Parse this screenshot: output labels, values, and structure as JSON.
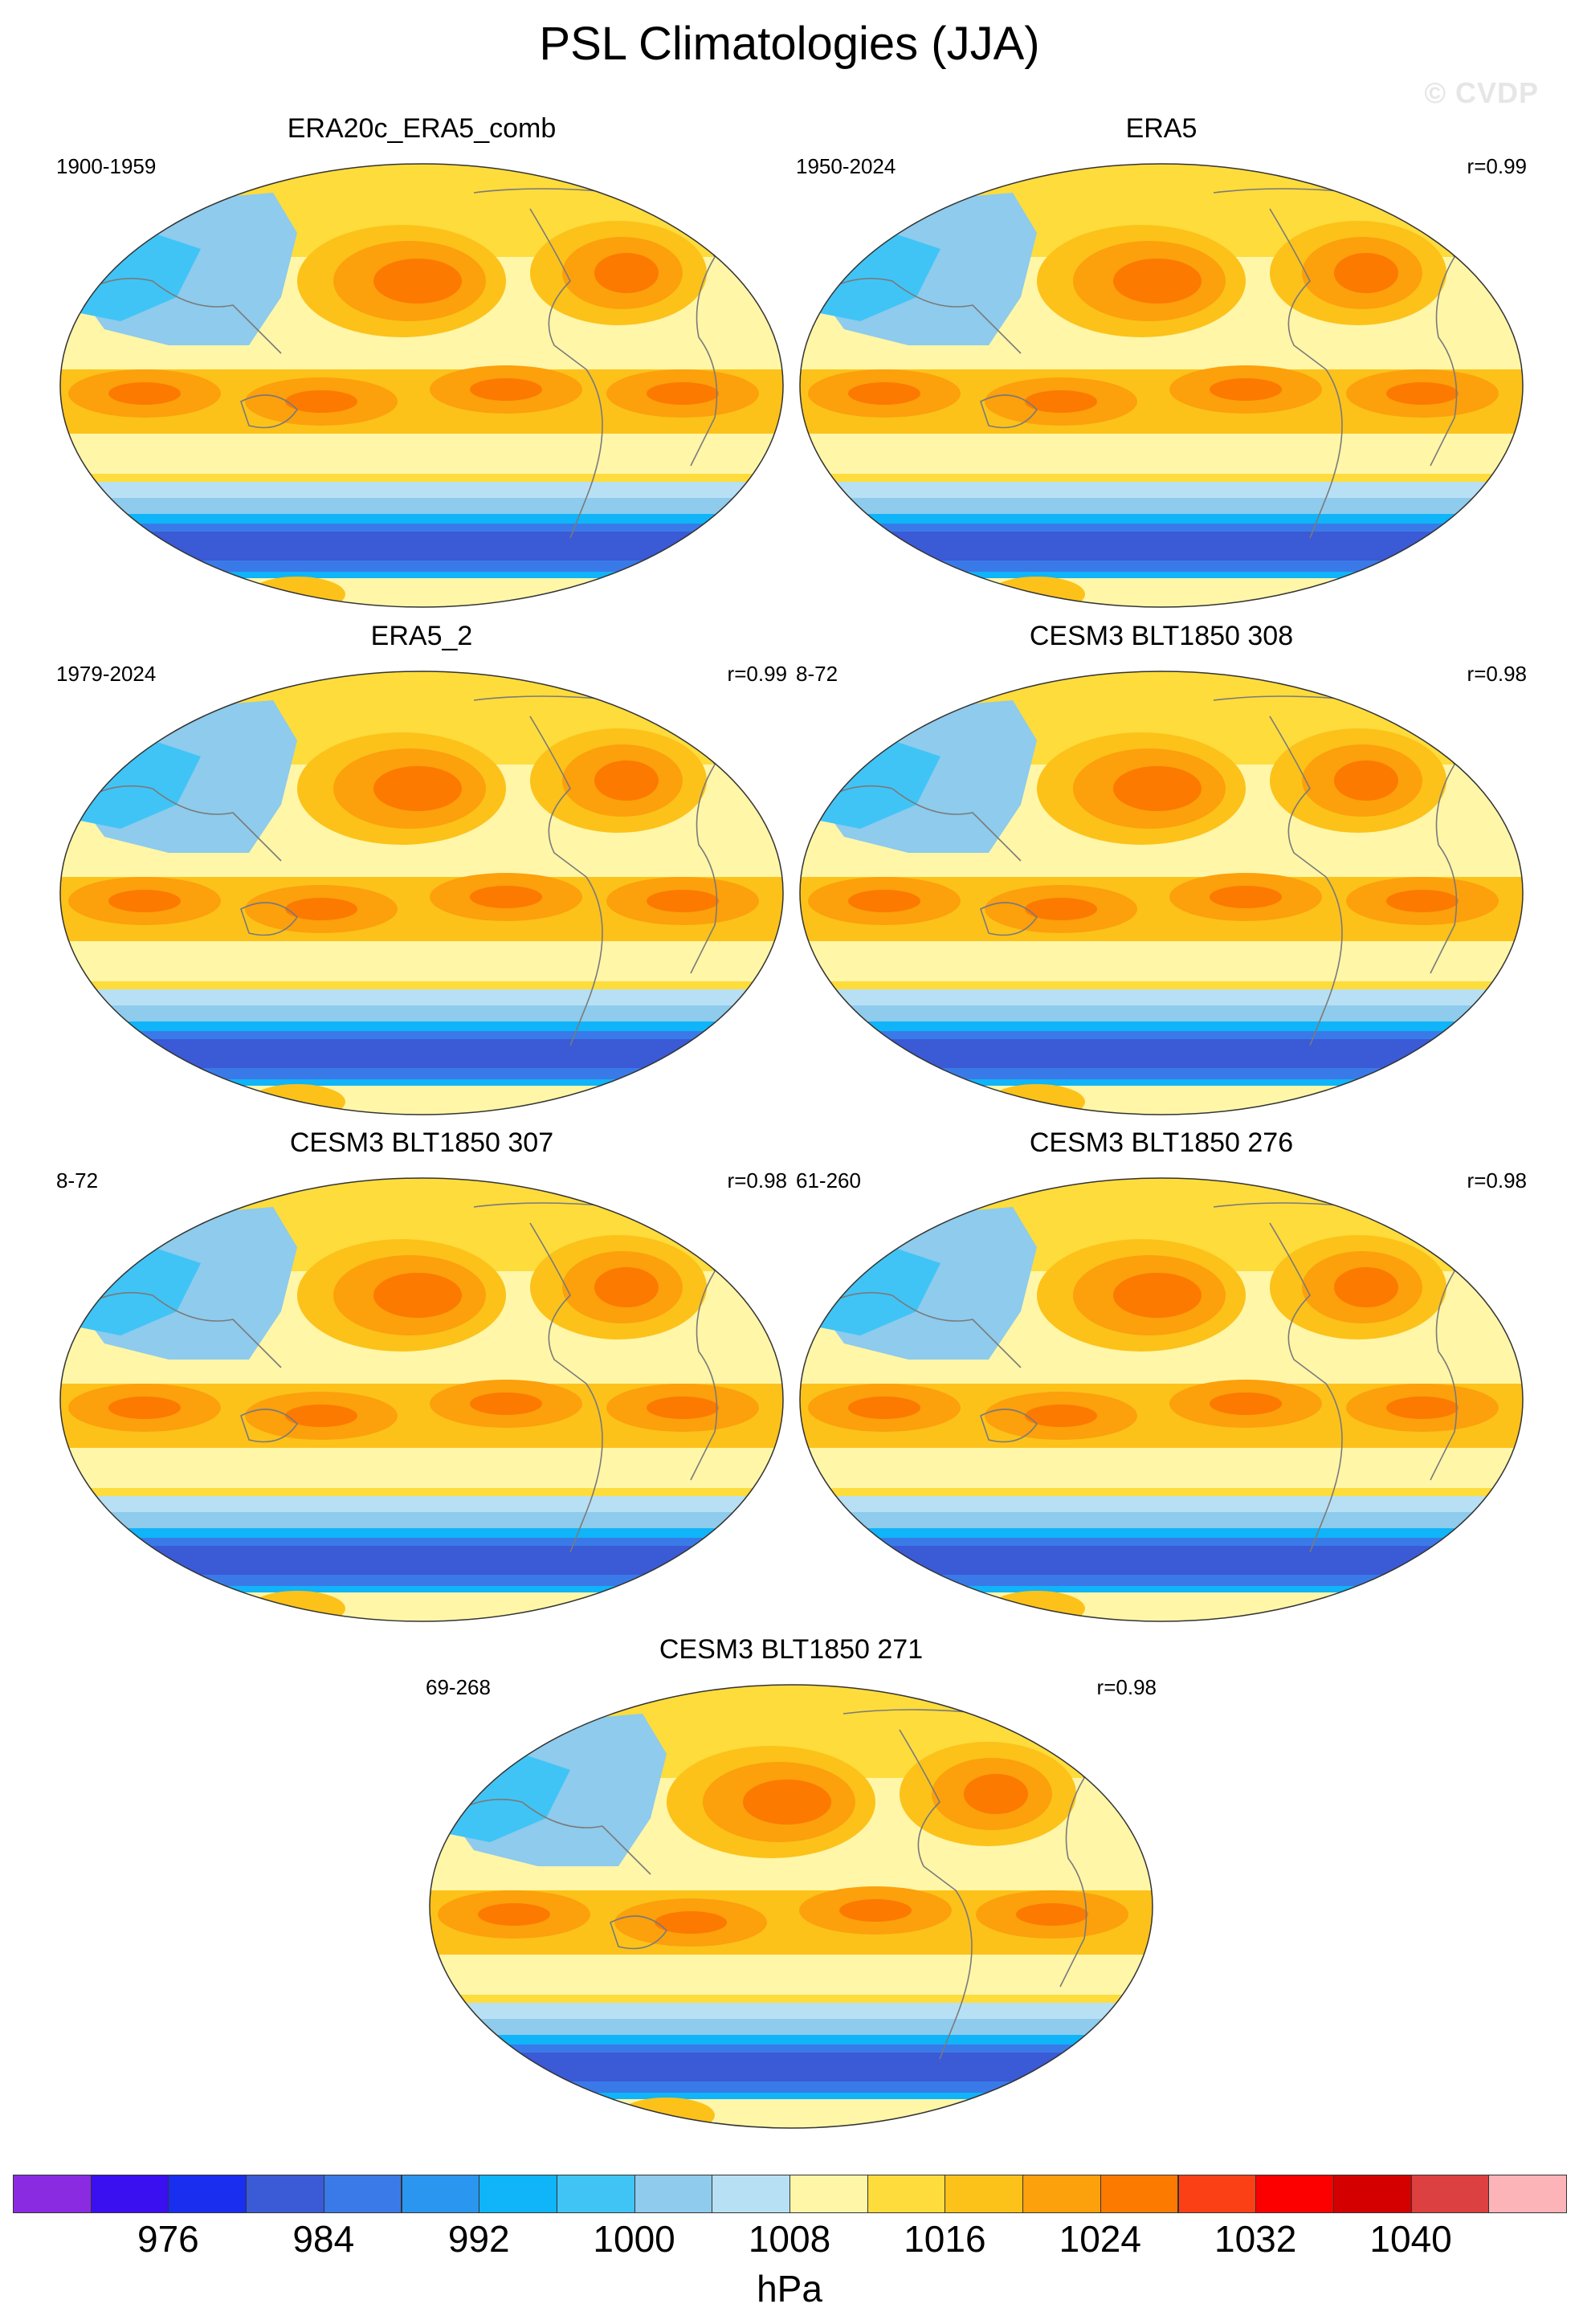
{
  "title": "PSL Climatologies (JJA)",
  "watermark": "© CVDP",
  "panels": [
    {
      "title": "ERA20c_ERA5_comb",
      "years": "1900-1959",
      "corr": ""
    },
    {
      "title": "ERA5",
      "years": "1950-2024",
      "corr": "r=0.99"
    },
    {
      "title": "ERA5_2",
      "years": "1979-2024",
      "corr": "r=0.99"
    },
    {
      "title": "CESM3 BLT1850 308",
      "years": "8-72",
      "corr": "r=0.98"
    },
    {
      "title": "CESM3 BLT1850 307",
      "years": "8-72",
      "corr": "r=0.98"
    },
    {
      "title": "CESM3 BLT1850 276",
      "years": "61-260",
      "corr": "r=0.98"
    },
    {
      "title": "CESM3 BLT1850 271",
      "years": "69-268",
      "corr": "r=0.98"
    }
  ],
  "colorbar": {
    "units": "hPa",
    "tick_labels": [
      "976",
      "984",
      "992",
      "1000",
      "1008",
      "1016",
      "1024",
      "1032",
      "1040"
    ],
    "levels": [
      972,
      976,
      980,
      984,
      988,
      992,
      996,
      1000,
      1004,
      1008,
      1012,
      1016,
      1020,
      1024,
      1028,
      1032,
      1036,
      1040,
      1044
    ],
    "colors": [
      "#8a2be2",
      "#3a10f0",
      "#1a2ef0",
      "#3a5ad6",
      "#3a7ae8",
      "#2a96f0",
      "#10b4f8",
      "#40c4f6",
      "#8ecbec",
      "#b8e0f4",
      "#fff6a8",
      "#fddc3c",
      "#fcc21a",
      "#fca00c",
      "#fc7a00",
      "#fc4016",
      "#fc0000",
      "#d40000",
      "#dc4040",
      "#fcb4b8"
    ]
  }
}
